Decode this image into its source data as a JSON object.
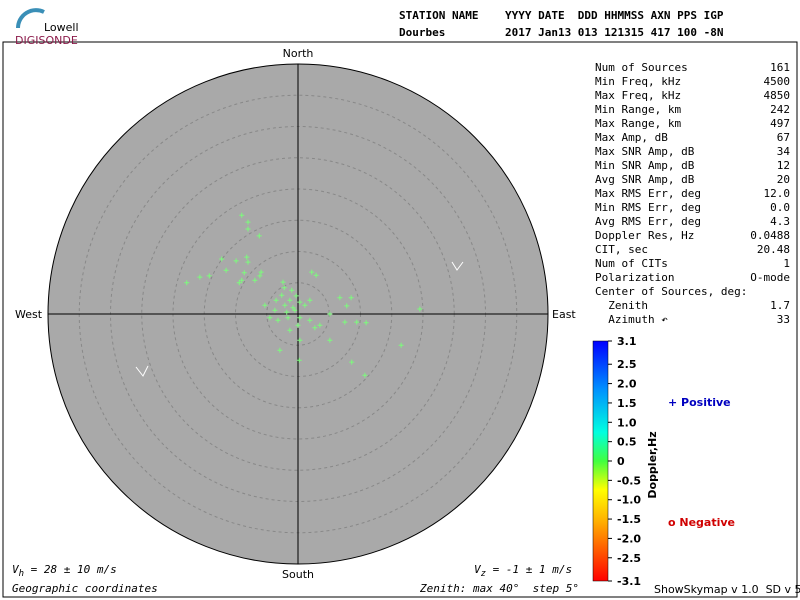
{
  "logo": {
    "top": "Lowell",
    "bottom": "DIGISONDE"
  },
  "header": {
    "line1": "STATION NAME    YYYY DATE  DDD HHMMSS AXN PPS IGP",
    "line2": "Dourbes         2017 Jan13 013 121315 417 100 -8N"
  },
  "stats": [
    [
      "Num of Sources",
      "161"
    ],
    [
      "Min Freq, kHz",
      "4500"
    ],
    [
      "Max Freq, kHz",
      "4850"
    ],
    [
      "Min Range, km",
      "242"
    ],
    [
      "Max Range, km",
      "497"
    ],
    [
      "Max Amp, dB",
      "67"
    ],
    [
      "Max SNR Amp, dB",
      "34"
    ],
    [
      "Min SNR Amp, dB",
      "12"
    ],
    [
      "Avg SNR Amp, dB",
      "20"
    ],
    [
      "Max RMS Err, deg",
      "12.0"
    ],
    [
      "Min RMS Err, deg",
      "0.0"
    ],
    [
      "Avg RMS Err, deg",
      "4.3"
    ],
    [
      "Doppler Res, Hz",
      "0.0488"
    ],
    [
      "CIT, sec",
      "20.48"
    ],
    [
      "Num of CITs",
      "1"
    ],
    [
      "Polarization",
      "O-mode"
    ],
    [
      "Center of Sources, deg:",
      ""
    ],
    [
      "  Zenith",
      "1.7"
    ],
    [
      "  Azimuth ↶",
      "33"
    ]
  ],
  "compass": {
    "north": "North",
    "south": "South",
    "east": "East",
    "west": "West"
  },
  "plot": {
    "type": "scatter",
    "zenith_max": 40,
    "zenith_step": 5,
    "color": "#7cfc7c",
    "background": "#a9a9a9",
    "east": [
      -9.0,
      -8.0,
      -8.0,
      -6.2,
      -12.2,
      -9.9,
      -8.2,
      -8.0,
      -11.5,
      -8.6,
      -9.0,
      -14.2,
      -17.8,
      -15.7,
      -5.9,
      -6.9,
      -9.4,
      2.2,
      2.9,
      6.7,
      8.5,
      7.8,
      19.5,
      1.9,
      5.1,
      7.5,
      9.4,
      10.9,
      3.5,
      5.1,
      8.6,
      10.7,
      16.5,
      0.2,
      0,
      -2.9,
      -1.3,
      0.3,
      -3.7,
      -2.6,
      -2.1,
      -1.3,
      -0.5,
      1.1,
      -4.5,
      -5.3,
      -3.2,
      -1.6,
      0.3,
      1.9,
      2.7,
      -2.4,
      -2.2,
      -1.0,
      -0.3,
      0.3,
      -1.8,
      -0.8,
      -6.1,
      -3.5
    ],
    "north": [
      15.8,
      14.7,
      13.6,
      12.5,
      8.8,
      8.5,
      9.1,
      8.3,
      7.0,
      6.6,
      5.4,
      6.1,
      5.0,
      5.9,
      6.7,
      5.4,
      5.0,
      6.7,
      6.2,
      2.6,
      2.6,
      1.3,
      0.8,
      2.2,
      0,
      -1.3,
      -1.3,
      -1.4,
      -1.8,
      -4.2,
      -7.7,
      -9.8,
      -5.0,
      -7.4,
      -1.8,
      -5.8,
      -2.6,
      -4.2,
      0.6,
      3.0,
      1.4,
      2.2,
      0.6,
      1.4,
      -0.6,
      1.4,
      -1.0,
      -0.6,
      -0.6,
      -1.0,
      -2.2,
      5.1,
      4.2,
      3.8,
      2.9,
      1.9,
      0.3,
      1.0,
      6.1,
      2.2
    ]
  },
  "colorbar": {
    "label": "Doppler,Hz",
    "ticks": [
      3.1,
      2.5,
      {
        "value": 2,
        "label": "2.0"
      },
      1.5,
      {
        "value": 1,
        "label": "1.0"
      },
      0.5,
      0,
      -0.5,
      {
        "value": -1,
        "label": "-1.0"
      },
      -1.5,
      {
        "value": -2,
        "label": "-2.0"
      },
      -2.5,
      -3.1
    ]
  },
  "legend": {
    "positive": "+ Positive",
    "negative": "o Negative"
  },
  "footer": {
    "vh_symbol": "V",
    "vh_sub": "h",
    "vh_text": " = 28 ± 10 m/s",
    "vz_symbol": "V",
    "vz_sub": "z",
    "vz_text": " = -1 ± 1 m/s",
    "coords": "Geographic coordinates",
    "zenith": "Zenith: max 40°  step 5°",
    "version": "ShowSkymap v 1.0  SD v 5.1"
  }
}
